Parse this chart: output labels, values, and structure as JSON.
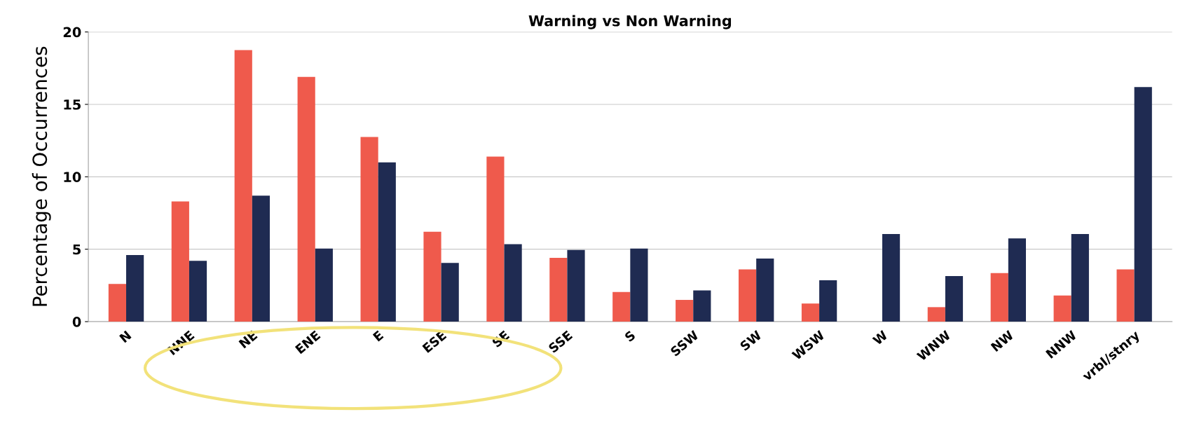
{
  "chart_data": {
    "type": "bar",
    "title": "Warning vs Non Warning",
    "ylabel": "Percentage of Occurrences",
    "categories": [
      "N",
      "NNE",
      "NE",
      "ENE",
      "E",
      "ESE",
      "SE",
      "SSE",
      "S",
      "SSW",
      "SW",
      "WSW",
      "W",
      "WNW",
      "NW",
      "NNW",
      "vrbl/stnry"
    ],
    "series": [
      {
        "color": "#ef5a4c",
        "values": [
          2.6,
          8.3,
          18.75,
          16.9,
          12.75,
          6.2,
          11.4,
          4.4,
          2.05,
          1.5,
          3.6,
          1.25,
          0,
          1.0,
          3.35,
          1.8,
          3.6
        ]
      },
      {
        "color": "#1f2b52",
        "values": [
          4.6,
          4.2,
          8.7,
          5.05,
          11.0,
          4.05,
          5.35,
          4.95,
          5.05,
          2.15,
          4.35,
          2.85,
          6.05,
          3.15,
          5.75,
          6.05,
          16.2
        ]
      }
    ],
    "ylim": [
      0,
      20
    ],
    "yticks": [
      0,
      5,
      10,
      15,
      20
    ],
    "grid": "y"
  }
}
